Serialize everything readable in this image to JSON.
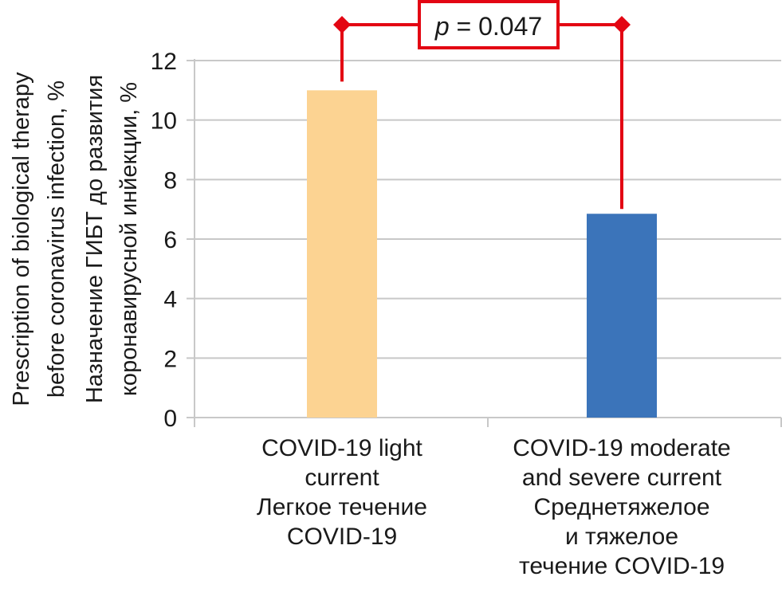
{
  "chart_data": {
    "type": "bar",
    "title": "",
    "categories": [
      [
        "COVID-19 light",
        "current",
        "Легкое течение",
        "COVID-19"
      ],
      [
        "COVID-19 moderate",
        "and severe current",
        "Среднетяжелое",
        "и тяжелое",
        "течение COVID-19"
      ]
    ],
    "values": [
      11.0,
      6.85
    ],
    "bar_colors": [
      "#FCD392",
      "#3B74BA"
    ],
    "ylabel_lines": [
      "Prescription of biological therapy",
      "before coronavirus infection, %",
      "Назначение ГИБТ до развития",
      "коронавирусной инйекции, %"
    ],
    "xlabel": "",
    "ylim": [
      0,
      12
    ],
    "yticks": [
      0,
      2,
      4,
      6,
      8,
      10,
      12
    ],
    "grid": true,
    "annotation": {
      "type": "significance-bracket",
      "between": [
        0,
        1
      ],
      "text_italic": "p",
      "text_rest": " = 0.047",
      "color": "#E30613"
    },
    "colors": {
      "grid": "#C8C8C8",
      "text": "#1a1a1a"
    }
  }
}
